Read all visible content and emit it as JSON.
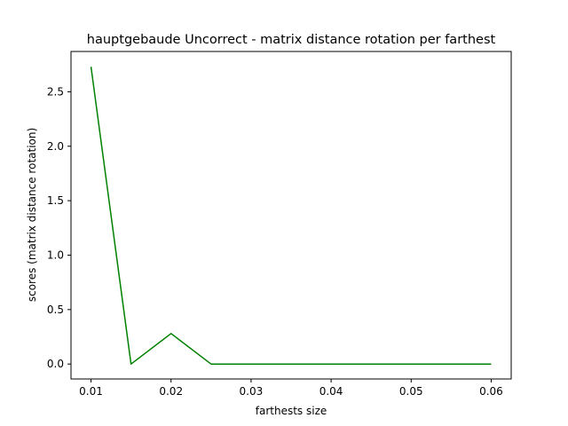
{
  "chart_data": {
    "type": "line",
    "title": "hauptgebaude Uncorrect - matrix distance rotation per farthest",
    "xlabel": "farthests size",
    "ylabel": "scores (matrix distance rotation)",
    "xlim": [
      0.0075,
      0.0625
    ],
    "ylim": [
      -0.137,
      2.87
    ],
    "xticks": [
      0.01,
      0.02,
      0.03,
      0.04,
      0.05,
      0.06
    ],
    "xtick_labels": [
      "0.01",
      "0.02",
      "0.03",
      "0.04",
      "0.05",
      "0.06"
    ],
    "yticks": [
      0.0,
      0.5,
      1.0,
      1.5,
      2.0,
      2.5
    ],
    "ytick_labels": [
      "0.0",
      "0.5",
      "1.0",
      "1.5",
      "2.0",
      "2.5"
    ],
    "grid": false,
    "series": [
      {
        "color": "#008000",
        "x": [
          0.01,
          0.015,
          0.02,
          0.025,
          0.03,
          0.035,
          0.04,
          0.045,
          0.05,
          0.055,
          0.06
        ],
        "y": [
          2.73,
          0.0,
          0.28,
          0.0,
          0.0,
          0.0,
          0.0,
          0.0,
          0.0,
          0.0,
          0.0
        ]
      }
    ]
  }
}
